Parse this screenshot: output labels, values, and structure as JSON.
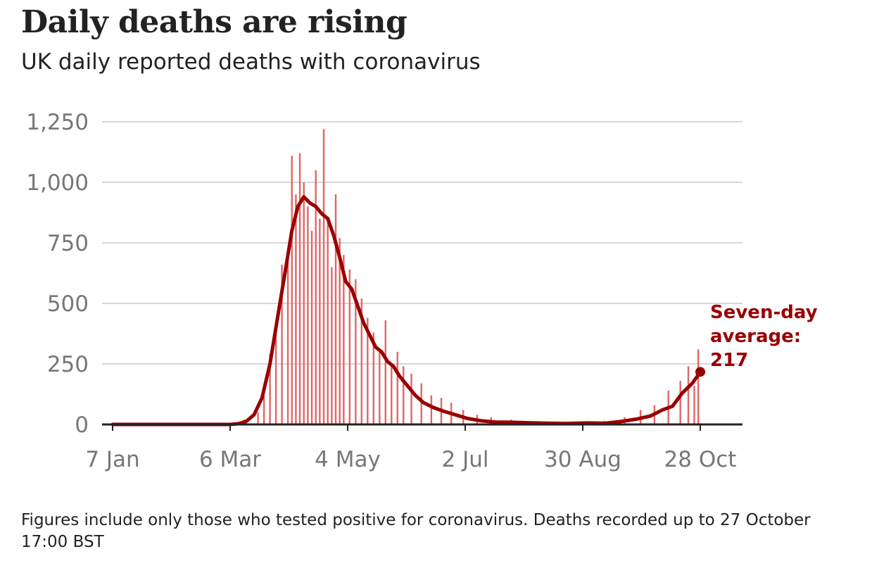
{
  "header": {
    "title": "Daily deaths are rising",
    "subtitle": "UK daily reported deaths with coronavirus"
  },
  "footnote": "Figures include only those who tested positive for coronavirus. Deaths recorded up to 27 October 17:00 BST",
  "colors": {
    "bars": "#e06666",
    "line": "#990000",
    "grid": "#cccccc",
    "axis": "#222222",
    "tick_text": "#777777"
  },
  "chart_data": {
    "type": "bar",
    "title": "Daily deaths are rising",
    "subtitle": "UK daily reported deaths with coronavirus",
    "xlabel": "",
    "ylabel": "",
    "x_start": "2020-01-07",
    "x_end": "2020-10-28",
    "ylim": [
      0,
      1250
    ],
    "yticks": [
      0,
      250,
      500,
      750,
      1000,
      1250
    ],
    "ytick_labels": [
      "0",
      "250",
      "500",
      "750",
      "1,000",
      "1,250"
    ],
    "xtick_labels": [
      "7 Jan",
      "6 Mar",
      "4 May",
      "2 Jul",
      "30 Aug",
      "28 Oct"
    ],
    "grid": true,
    "series": [
      {
        "name": "Daily deaths",
        "kind": "bar",
        "dates": [
          "2020-03-06",
          "2020-03-13",
          "2020-03-20",
          "2020-03-23",
          "2020-03-26",
          "2020-03-29",
          "2020-04-01",
          "2020-04-04",
          "2020-04-06",
          "2020-04-08",
          "2020-04-10",
          "2020-04-12",
          "2020-04-14",
          "2020-04-16",
          "2020-04-18",
          "2020-04-20",
          "2020-04-22",
          "2020-04-24",
          "2020-04-26",
          "2020-04-28",
          "2020-04-30",
          "2020-05-02",
          "2020-05-05",
          "2020-05-08",
          "2020-05-11",
          "2020-05-14",
          "2020-05-17",
          "2020-05-20",
          "2020-05-23",
          "2020-05-26",
          "2020-05-29",
          "2020-06-01",
          "2020-06-05",
          "2020-06-10",
          "2020-06-15",
          "2020-06-20",
          "2020-06-25",
          "2020-07-01",
          "2020-07-08",
          "2020-07-15",
          "2020-07-25",
          "2020-08-05",
          "2020-08-20",
          "2020-09-01",
          "2020-09-10",
          "2020-09-20",
          "2020-09-28",
          "2020-10-05",
          "2020-10-12",
          "2020-10-18",
          "2020-10-22",
          "2020-10-25",
          "2020-10-27"
        ],
        "values": [
          3,
          20,
          50,
          120,
          290,
          390,
          660,
          700,
          1110,
          950,
          1120,
          1000,
          900,
          800,
          1050,
          850,
          1220,
          840,
          650,
          950,
          770,
          700,
          640,
          600,
          520,
          440,
          380,
          300,
          430,
          250,
          300,
          240,
          210,
          170,
          120,
          110,
          90,
          60,
          40,
          30,
          20,
          10,
          5,
          5,
          15,
          30,
          60,
          80,
          140,
          180,
          240,
          160,
          310
        ]
      },
      {
        "name": "Seven-day average",
        "kind": "line",
        "dates": [
          "2020-01-07",
          "2020-03-06",
          "2020-03-10",
          "2020-03-14",
          "2020-03-18",
          "2020-03-22",
          "2020-03-26",
          "2020-03-30",
          "2020-04-03",
          "2020-04-06",
          "2020-04-09",
          "2020-04-12",
          "2020-04-15",
          "2020-04-18",
          "2020-04-21",
          "2020-04-24",
          "2020-04-27",
          "2020-04-30",
          "2020-05-03",
          "2020-05-06",
          "2020-05-09",
          "2020-05-12",
          "2020-05-15",
          "2020-05-18",
          "2020-05-21",
          "2020-05-24",
          "2020-05-27",
          "2020-05-30",
          "2020-06-03",
          "2020-06-07",
          "2020-06-11",
          "2020-06-16",
          "2020-06-21",
          "2020-06-27",
          "2020-07-03",
          "2020-07-10",
          "2020-07-17",
          "2020-07-25",
          "2020-08-03",
          "2020-08-12",
          "2020-08-22",
          "2020-09-01",
          "2020-09-10",
          "2020-09-18",
          "2020-09-26",
          "2020-10-03",
          "2020-10-09",
          "2020-10-14",
          "2020-10-19",
          "2020-10-24",
          "2020-10-28"
        ],
        "values": [
          0,
          0,
          3,
          12,
          40,
          110,
          250,
          450,
          650,
          800,
          900,
          940,
          915,
          900,
          870,
          850,
          780,
          690,
          590,
          560,
          490,
          420,
          370,
          320,
          300,
          260,
          240,
          200,
          160,
          120,
          90,
          70,
          55,
          40,
          25,
          15,
          10,
          9,
          7,
          5,
          4,
          6,
          5,
          12,
          22,
          35,
          60,
          75,
          130,
          170,
          217
        ]
      }
    ],
    "annotation": {
      "lines": [
        "Seven-day",
        "average:",
        "217"
      ],
      "date": "2020-10-28",
      "value": 217
    },
    "legend": "none"
  }
}
